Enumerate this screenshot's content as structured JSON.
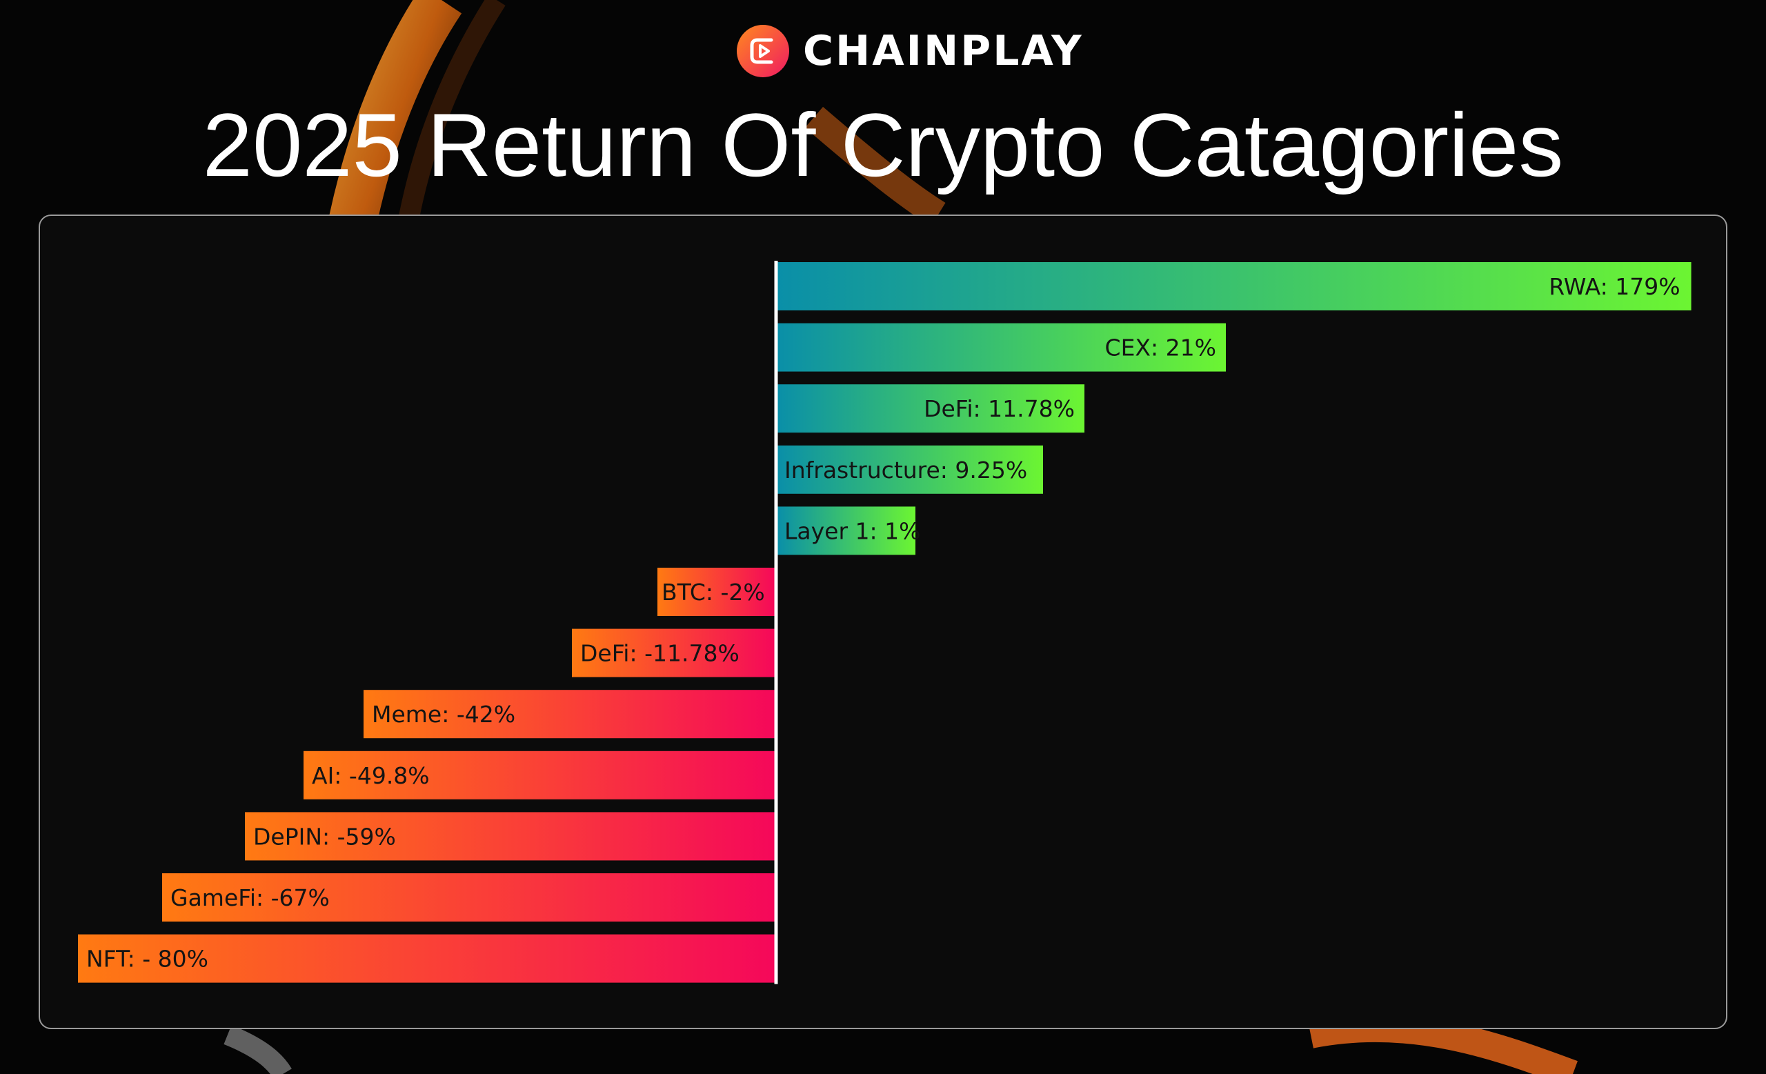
{
  "brand": {
    "name": "CHAINPLAY"
  },
  "title": "2025 Return Of Crypto Catagories",
  "colors": {
    "positive_start": "#0a8fa8",
    "positive_end": "#6cf532",
    "negative_start": "#ff7a12",
    "negative_end": "#f5085a",
    "axis": "#ffffff",
    "panel_border": "#9a9a9a"
  },
  "chart_data": {
    "type": "bar",
    "orientation": "horizontal",
    "grid": false,
    "categories": [
      "RWA",
      "CEX",
      "DeFi",
      "Infrastructure",
      "Layer 1",
      "BTC",
      "DeFi",
      "Meme",
      "AI",
      "DePIN",
      "GameFi",
      "NFT"
    ],
    "values": [
      179,
      21,
      11.78,
      9.25,
      1,
      -2,
      -11.78,
      -42,
      -49.8,
      -59,
      -67,
      -80
    ],
    "data_labels": [
      "RWA: 179%",
      "CEX: 21%",
      "DeFi: 11.78%",
      "Infrastructure: 9.25%",
      "Layer 1: 1%",
      "BTC: -2%",
      "DeFi: -11.78%",
      "Meme: -42%",
      "AI: -49.8%",
      "DePIN: -59%",
      "GameFi: -67%",
      "NFT: - 80%"
    ]
  }
}
